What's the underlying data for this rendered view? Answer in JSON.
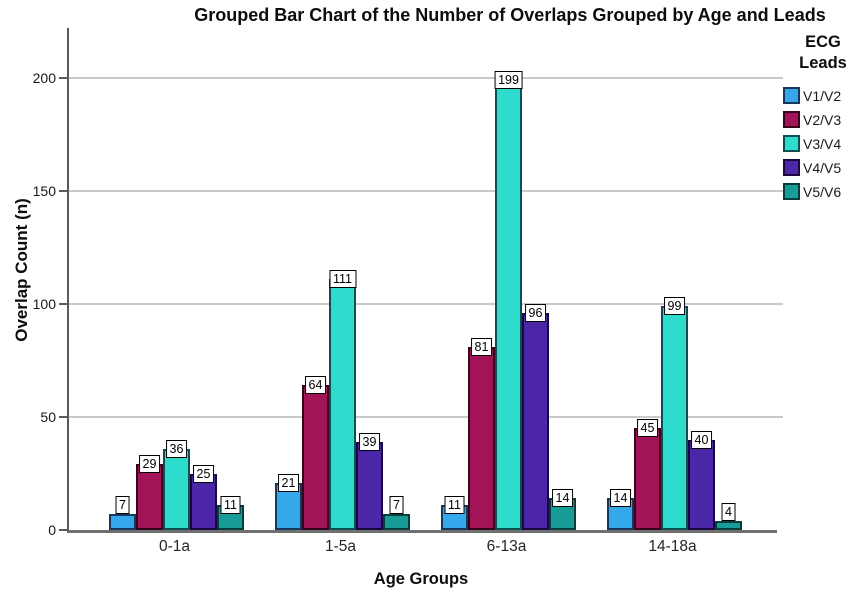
{
  "title": "Grouped Bar Chart of the Number of Overlaps Grouped by Age and Leads",
  "chart_data": {
    "type": "bar",
    "title": "Grouped Bar Chart of the Number of Overlaps Grouped by Age and Leads",
    "xlabel": "Age Groups",
    "ylabel": "Overlap Count (n)",
    "categories": [
      "0-1a",
      "1-5a",
      "6-13a",
      "14-18a"
    ],
    "series": [
      {
        "name": "V1/V2",
        "fill": "#35A8EC",
        "border": "#17375E",
        "values": [
          7,
          21,
          11,
          14
        ]
      },
      {
        "name": "V2/V3",
        "fill": "#A31357",
        "border": "#33041C",
        "values": [
          29,
          64,
          81,
          45
        ]
      },
      {
        "name": "V3/V4",
        "fill": "#2EDCCD",
        "border": "#0B4F52",
        "values": [
          36,
          111,
          199,
          99
        ]
      },
      {
        "name": "V4/V5",
        "fill": "#4B27A8",
        "border": "#190740",
        "values": [
          25,
          39,
          96,
          40
        ]
      },
      {
        "name": "V5/V6",
        "fill": "#179C98",
        "border": "#063C3C",
        "values": [
          11,
          7,
          14,
          4
        ]
      }
    ],
    "data_labels": {
      "0-1a": [
        7,
        29,
        36,
        25,
        11
      ],
      "1-5a": [
        21,
        64,
        111,
        39,
        7
      ],
      "6-13a": [
        11,
        81,
        199,
        96,
        14
      ],
      "14-18a": [
        14,
        45,
        99,
        40,
        4
      ]
    },
    "y_ticks": [
      0,
      50,
      100,
      150,
      200
    ],
    "ylim": [
      0,
      222
    ],
    "grid": true,
    "legend_title": "ECG Leads",
    "legend_position": "right"
  },
  "legend": {
    "title_line1": "ECG",
    "title_line2": "Leads"
  },
  "style": {
    "gridline_color": "#C9C9C9",
    "axis_color": "#5a5a5a",
    "label_box_bg": "#FFFFFF",
    "label_box_border": "#000000"
  }
}
